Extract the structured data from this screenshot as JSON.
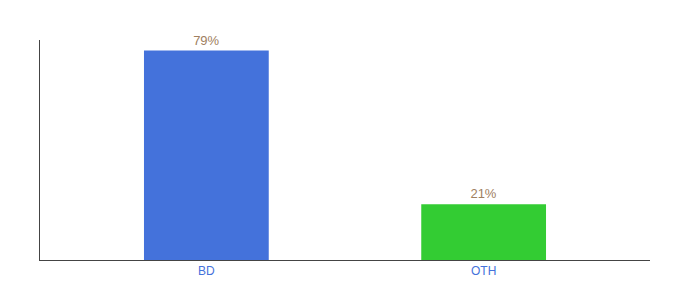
{
  "chart_data": {
    "type": "bar",
    "categories": [
      "BD",
      "OTH"
    ],
    "values": [
      79,
      21
    ],
    "value_labels": [
      "79%",
      "21%"
    ],
    "colors": [
      "#4472db",
      "#33cc33"
    ],
    "ylim": [
      0,
      83
    ],
    "data_labels": true,
    "tick_labels": "x",
    "grid": false
  }
}
